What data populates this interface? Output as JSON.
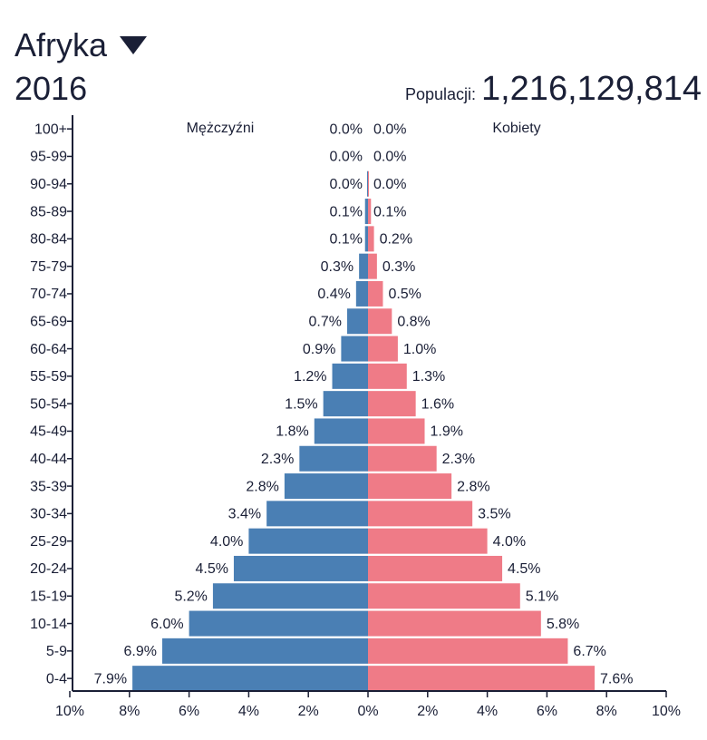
{
  "header": {
    "region": "Afryka",
    "year": "2016",
    "population_label": "Populacji:",
    "population_value": "1,216,129,814"
  },
  "colors": {
    "male": "#4a7fb4",
    "female": "#ef7b87",
    "axis": "#1a1f36"
  },
  "chart_data": {
    "type": "bar",
    "orientation": "horizontal",
    "subtype": "population-pyramid",
    "categories": [
      "100+",
      "95-99",
      "90-94",
      "85-89",
      "80-84",
      "75-79",
      "70-74",
      "65-69",
      "60-64",
      "55-59",
      "50-54",
      "45-49",
      "40-44",
      "35-39",
      "30-34",
      "25-29",
      "20-24",
      "15-19",
      "10-14",
      "5-9",
      "0-4"
    ],
    "series": [
      {
        "name": "Mężczyźni",
        "values": [
          0.0,
          0.0,
          0.0,
          0.1,
          0.1,
          0.3,
          0.4,
          0.7,
          0.9,
          1.2,
          1.5,
          1.8,
          2.3,
          2.8,
          3.4,
          4.0,
          4.5,
          5.2,
          6.0,
          6.9,
          7.9
        ],
        "labels": [
          "0.0%",
          "0.0%",
          "0.0%",
          "0.1%",
          "0.1%",
          "0.3%",
          "0.4%",
          "0.7%",
          "0.9%",
          "1.2%",
          "1.5%",
          "1.8%",
          "2.3%",
          "2.8%",
          "3.4%",
          "4.0%",
          "4.5%",
          "5.2%",
          "6.0%",
          "6.9%",
          "7.9%"
        ]
      },
      {
        "name": "Kobiety",
        "values": [
          0.0,
          0.0,
          0.0,
          0.1,
          0.2,
          0.3,
          0.5,
          0.8,
          1.0,
          1.3,
          1.6,
          1.9,
          2.3,
          2.8,
          3.5,
          4.0,
          4.5,
          5.1,
          5.8,
          6.7,
          7.6
        ],
        "labels": [
          "0.0%",
          "0.0%",
          "0.0%",
          "0.1%",
          "0.2%",
          "0.3%",
          "0.5%",
          "0.8%",
          "1.0%",
          "1.3%",
          "1.6%",
          "1.9%",
          "2.3%",
          "2.8%",
          "3.5%",
          "4.0%",
          "4.5%",
          "5.1%",
          "5.8%",
          "6.7%",
          "7.6%"
        ]
      }
    ],
    "xlim": [
      -10,
      10
    ],
    "x_ticks": [
      "10%",
      "8%",
      "6%",
      "4%",
      "2%",
      "0%",
      "2%",
      "4%",
      "6%",
      "8%",
      "10%"
    ],
    "grid": false,
    "legend": "series names printed at top of each side"
  }
}
